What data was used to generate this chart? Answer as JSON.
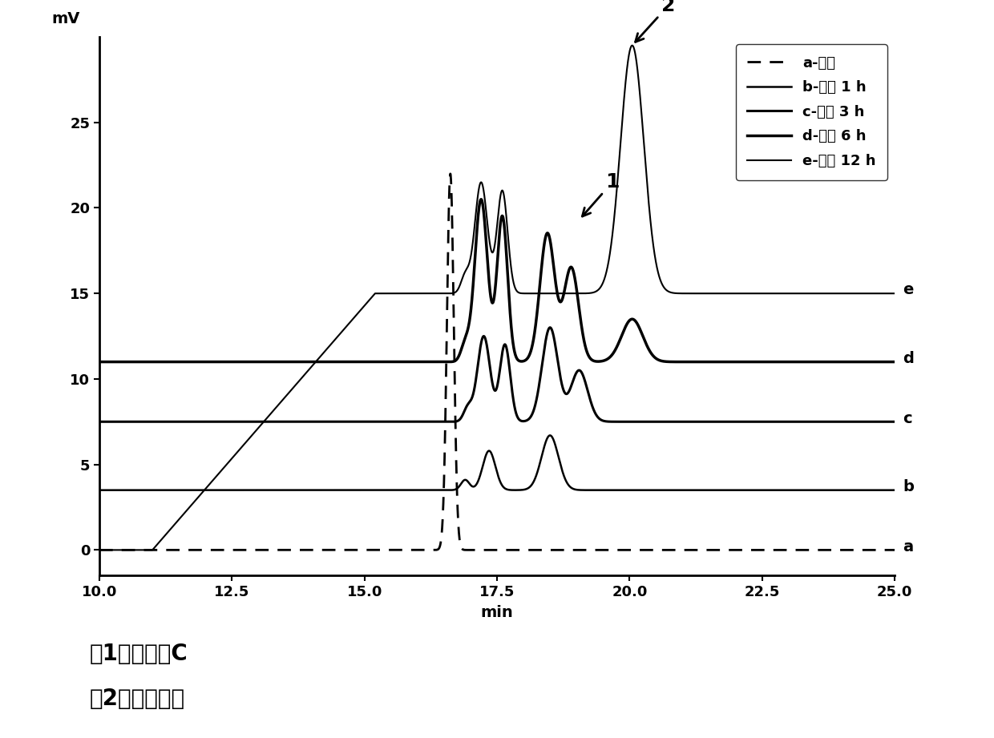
{
  "xlim": [
    10.0,
    25.0
  ],
  "ylim": [
    -1.5,
    30
  ],
  "xlabel": "min",
  "ylabel": "mV",
  "xticks": [
    10.0,
    12.5,
    15.0,
    17.5,
    20.0,
    22.5,
    25.0
  ],
  "yticks": [
    0,
    5,
    10,
    15,
    20,
    25
  ],
  "background_color": "#ffffff",
  "label_a": "a-对照",
  "label_b": "b-反应 1 h",
  "label_c": "c-反应 3 h",
  "label_d": "d-反应 6 h",
  "label_e": "e-反应 12 h",
  "text_peak1": "剰1：朝藿定C",
  "text_peak2": "剰2：淫羊藿苷",
  "baseline_a": 0.0,
  "baseline_b": 3.5,
  "baseline_c": 7.5,
  "baseline_d": 11.0,
  "baseline_e": 15.0
}
